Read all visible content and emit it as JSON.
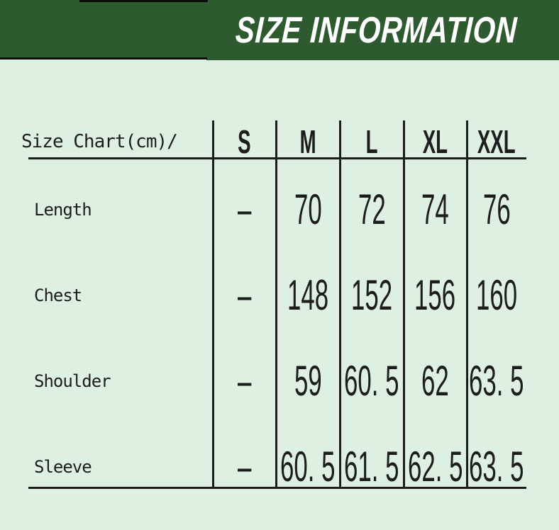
{
  "banner": {
    "title": "SIZE INFORMATION",
    "bg_color": "#2d5a2e",
    "title_color": "#ffffff",
    "accent_color": "#0d0d0d"
  },
  "page": {
    "background_color": "#def0e2",
    "line_color": "#1c1c1c",
    "text_color": "#1d1d1d"
  },
  "table": {
    "unit_label": "Size Chart(cm)/",
    "columns": [
      "S",
      "M",
      "L",
      "XL",
      "XXL"
    ],
    "rows": [
      {
        "label": "Length",
        "values": [
          "–",
          "70",
          "72",
          "74",
          "76"
        ]
      },
      {
        "label": "Chest",
        "values": [
          "–",
          "148",
          "152",
          "156",
          "160"
        ]
      },
      {
        "label": "Shoulder",
        "values": [
          "–",
          "59",
          "60. 5",
          "62",
          "63. 5"
        ]
      },
      {
        "label": "Sleeve",
        "values": [
          "–",
          "60. 5",
          "61. 5",
          "62. 5",
          "63. 5"
        ]
      }
    ]
  },
  "chart_data": {
    "type": "table",
    "title": "SIZE INFORMATION",
    "unit": "cm",
    "columns": [
      "S",
      "M",
      "L",
      "XL",
      "XXL"
    ],
    "rows": [
      {
        "label": "Length",
        "values": [
          null,
          70,
          72,
          74,
          76
        ]
      },
      {
        "label": "Chest",
        "values": [
          null,
          148,
          152,
          156,
          160
        ]
      },
      {
        "label": "Shoulder",
        "values": [
          null,
          59,
          60.5,
          62,
          63.5
        ]
      },
      {
        "label": "Sleeve",
        "values": [
          null,
          60.5,
          61.5,
          62.5,
          63.5
        ]
      }
    ],
    "notes": "S column has no data (dash). Measurements in centimeters."
  }
}
